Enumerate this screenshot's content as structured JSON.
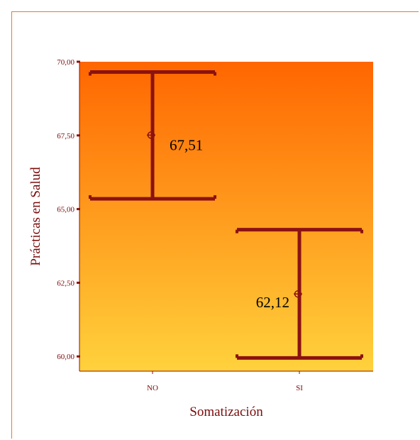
{
  "chart_data": {
    "type": "errorbar",
    "xlabel": "Somatización",
    "ylabel": "Prácticas en Salud",
    "categories": [
      "NO",
      "SI"
    ],
    "series": [
      {
        "means": [
          67.51,
          62.12
        ],
        "upper": [
          69.65,
          64.3
        ],
        "lower": [
          65.35,
          59.95
        ],
        "mean_labels": [
          "67,51",
          "62,12"
        ]
      }
    ],
    "ylim": [
      59.5,
      70.0
    ],
    "yticks": [
      60.0,
      62.5,
      65.0,
      67.5,
      70.0
    ],
    "ytick_labels": [
      "60,00",
      "62,50",
      "65,00",
      "67,50",
      "70,00"
    ],
    "grid": false,
    "colors": {
      "bar": "#8b1212",
      "bg_top": "#ff6600",
      "bg_bottom": "#ffd23c",
      "frame": "#f07820"
    }
  }
}
